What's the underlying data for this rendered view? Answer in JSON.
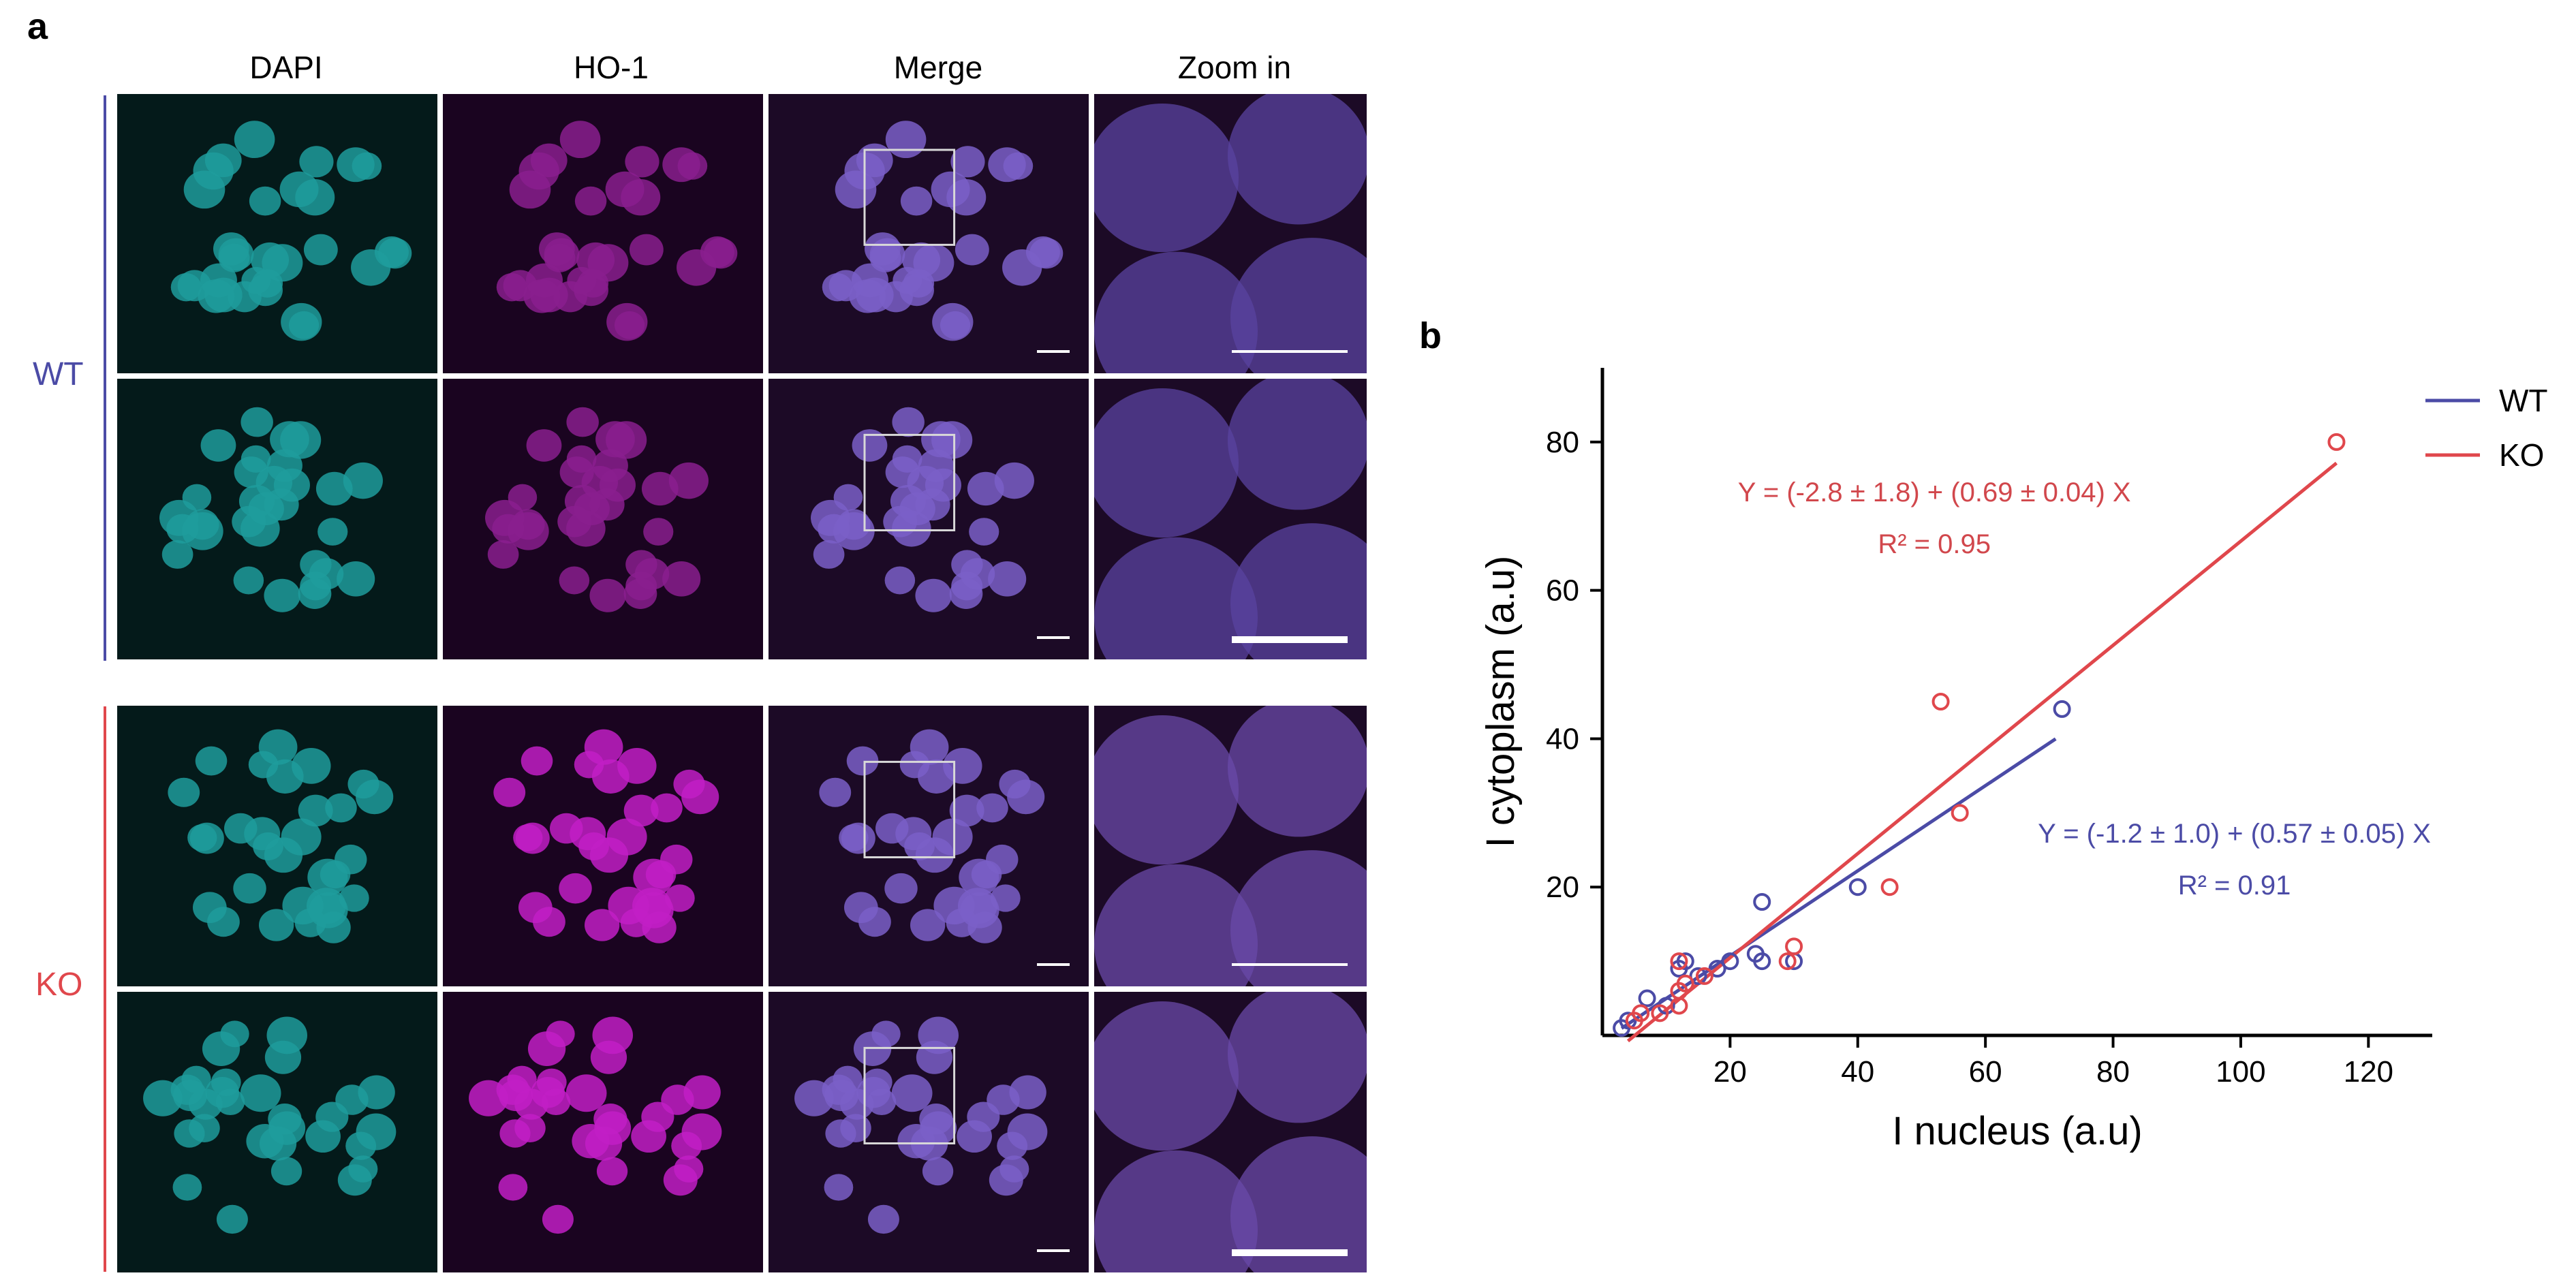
{
  "panel_a": {
    "label": "a",
    "columns": [
      "DAPI",
      "HO-1",
      "Merge",
      "Zoom in"
    ],
    "groups": [
      {
        "label": "WT",
        "color": "#4b4ba6"
      },
      {
        "label": "KO",
        "color": "#e0474c"
      }
    ]
  },
  "panel_b": {
    "label": "b"
  },
  "chart_data": {
    "type": "scatter",
    "xlabel": "I nucleus (a.u)",
    "ylabel": "I cytoplasm (a.u)",
    "xlim": [
      0,
      130
    ],
    "ylim": [
      0,
      90
    ],
    "xticks": [
      20,
      40,
      60,
      80,
      100,
      120
    ],
    "yticks": [
      20,
      40,
      60,
      80
    ],
    "grid": false,
    "legend_position": "top-right",
    "series": [
      {
        "name": "WT",
        "color": "#4b4ba6",
        "points": [
          [
            3,
            1
          ],
          [
            4,
            2
          ],
          [
            7,
            5
          ],
          [
            10,
            4
          ],
          [
            12,
            9
          ],
          [
            13,
            10
          ],
          [
            15,
            8
          ],
          [
            18,
            9
          ],
          [
            20,
            10
          ],
          [
            24,
            11
          ],
          [
            25,
            10
          ],
          [
            25,
            18
          ],
          [
            30,
            10
          ],
          [
            40,
            20
          ],
          [
            72,
            44
          ]
        ],
        "fit_x": [
          3,
          71
        ],
        "equation": "Y = (-1.2 ± 1.0) + (0.57 ± 0.05) X",
        "r2": "R² = 0.91"
      },
      {
        "name": "KO",
        "color": "#e0474c",
        "points": [
          [
            5,
            2
          ],
          [
            6,
            3
          ],
          [
            9,
            3
          ],
          [
            12,
            4
          ],
          [
            12,
            6
          ],
          [
            13,
            7
          ],
          [
            12,
            10
          ],
          [
            16,
            8
          ],
          [
            29,
            10
          ],
          [
            30,
            12
          ],
          [
            45,
            20
          ],
          [
            53,
            45
          ],
          [
            56,
            30
          ],
          [
            115,
            80
          ]
        ],
        "fit_x": [
          4,
          115
        ],
        "equation": "Y = (-2.8 ± 1.8) + (0.69 ± 0.04) X",
        "r2": "R² = 0.95"
      }
    ]
  }
}
